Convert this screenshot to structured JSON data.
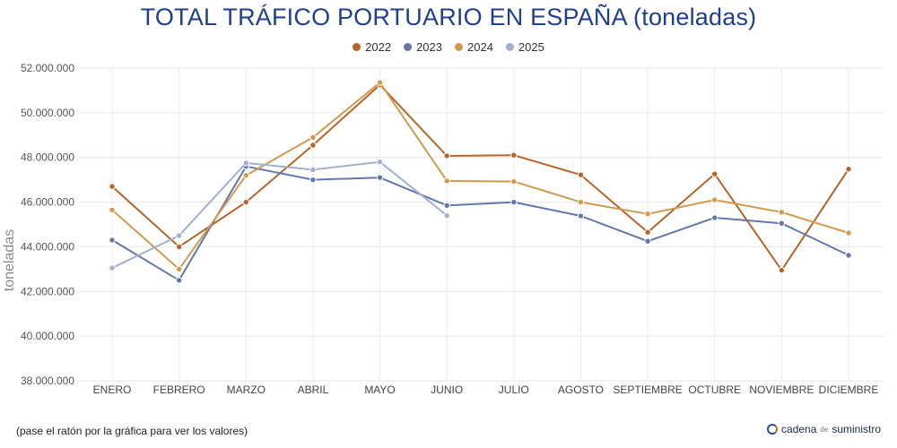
{
  "header": {
    "title": "TOTAL TRÁFICO PORTUARIO EN ESPAÑA (toneladas)"
  },
  "footer": {
    "note": "(pase el ratón por la gráfica para ver los valores)",
    "brand_main": "cadena",
    "brand_small": "de",
    "brand_end": "suministro"
  },
  "chart_data": {
    "type": "line",
    "title": "TOTAL TRÁFICO PORTUARIO EN ESPAÑA (toneladas)",
    "xlabel": "",
    "ylabel": "toneladas",
    "ylim": [
      38000000,
      52000000
    ],
    "yticks": [
      38000000,
      40000000,
      42000000,
      44000000,
      46000000,
      48000000,
      50000000,
      52000000
    ],
    "ytick_labels": [
      "38.000.000",
      "40.000.000",
      "42.000.000",
      "44.000.000",
      "46.000.000",
      "48.000.000",
      "50.000.000",
      "52.000.000"
    ],
    "grid": true,
    "legend_position": "top-center",
    "categories": [
      "ENERO",
      "FEBRERO",
      "MARZO",
      "ABRIL",
      "MAYO",
      "JUNIO",
      "JULIO",
      "AGOSTO",
      "SEPTIEMBRE",
      "OCTUBRE",
      "NOVIEMBRE",
      "DICIEMBRE"
    ],
    "series": [
      {
        "name": "2022",
        "color": "#b5652a",
        "values": [
          46700000,
          44000000,
          46000000,
          48550000,
          51250000,
          48070000,
          48100000,
          47220000,
          44650000,
          47260000,
          42950000,
          47480000
        ]
      },
      {
        "name": "2023",
        "color": "#6477aa",
        "values": [
          44300000,
          42500000,
          47600000,
          47000000,
          47100000,
          45850000,
          46000000,
          45380000,
          44250000,
          45300000,
          45050000,
          43620000
        ]
      },
      {
        "name": "2024",
        "color": "#d09a4e",
        "values": [
          45650000,
          43000000,
          47200000,
          48900000,
          51350000,
          46950000,
          46920000,
          46000000,
          45470000,
          46100000,
          45550000,
          44620000
        ]
      },
      {
        "name": "2025",
        "color": "#a3afcf",
        "values": [
          43050000,
          44500000,
          47750000,
          47450000,
          47800000,
          45400000,
          null,
          null,
          null,
          null,
          null,
          null
        ]
      }
    ]
  }
}
